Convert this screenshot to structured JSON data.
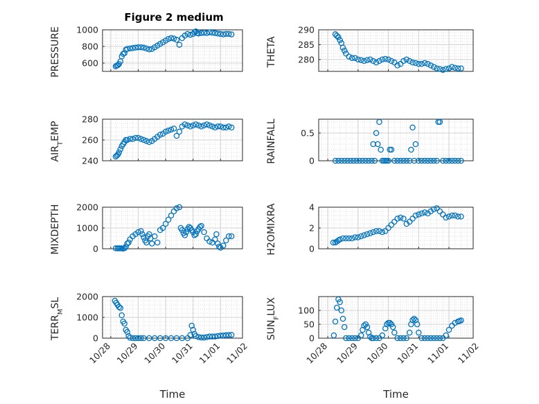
{
  "figure_title": "Figure 2 medium",
  "chart_data": [
    {
      "type": "scatter",
      "title": "Figure 2 medium",
      "ylabel": "PRESSURE",
      "xlabel": "",
      "ylim": [
        500,
        1000
      ],
      "yticks": [
        600,
        800,
        1000
      ],
      "x": [
        0.18,
        0.22,
        0.26,
        0.3,
        0.35,
        0.4,
        0.45,
        0.5,
        0.55,
        0.6,
        0.7,
        0.8,
        0.9,
        1.0,
        1.1,
        1.2,
        1.3,
        1.4,
        1.5,
        1.6,
        1.7,
        1.8,
        1.9,
        2.0,
        2.1,
        2.2,
        2.3,
        2.4,
        2.5,
        2.6,
        2.7,
        2.8,
        2.9,
        3.0,
        3.05,
        3.1,
        3.15,
        3.2,
        3.3,
        3.4,
        3.5,
        3.6,
        3.7,
        3.8,
        3.9,
        4.0,
        4.1,
        4.2,
        4.3,
        4.4
      ],
      "y": [
        560,
        570,
        575,
        590,
        620,
        680,
        710,
        720,
        760,
        770,
        775,
        780,
        785,
        790,
        790,
        785,
        775,
        765,
        770,
        790,
        810,
        830,
        850,
        870,
        890,
        900,
        895,
        880,
        820,
        900,
        930,
        950,
        940,
        950,
        970,
        980,
        960,
        955,
        960,
        965,
        960,
        970,
        965,
        960,
        955,
        950,
        945,
        950,
        950,
        945
      ]
    },
    {
      "type": "scatter",
      "ylabel": "THETA",
      "xlabel": "",
      "ylim": [
        276,
        290
      ],
      "yticks": [
        280,
        285,
        290
      ],
      "x": [
        0.25,
        0.3,
        0.35,
        0.4,
        0.45,
        0.5,
        0.55,
        0.6,
        0.7,
        0.8,
        0.9,
        1.0,
        1.1,
        1.2,
        1.3,
        1.4,
        1.5,
        1.6,
        1.7,
        1.8,
        1.9,
        2.0,
        2.1,
        2.2,
        2.3,
        2.4,
        2.5,
        2.6,
        2.7,
        2.8,
        2.9,
        3.0,
        3.1,
        3.2,
        3.3,
        3.4,
        3.5,
        3.6,
        3.7,
        3.8,
        3.9,
        4.0,
        4.1,
        4.2,
        4.3,
        4.4
      ],
      "y": [
        288.5,
        288,
        287.5,
        286.5,
        285.5,
        284,
        283,
        282,
        281,
        280.5,
        280.5,
        280,
        279.8,
        279.5,
        279.8,
        280,
        279.5,
        279,
        279.5,
        280,
        280.2,
        280,
        279.5,
        279,
        278,
        278.5,
        279.5,
        280,
        279.5,
        279,
        278.8,
        278.5,
        278.5,
        278.8,
        278.5,
        278,
        277.5,
        277,
        276.8,
        276.5,
        276.8,
        277,
        277.5,
        277.2,
        277,
        277
      ]
    },
    {
      "type": "scatter",
      "ylabel": "AIR_TEMP",
      "xlabel": "",
      "ylim": [
        240,
        280
      ],
      "yticks": [
        240,
        260,
        280
      ],
      "x": [
        0.18,
        0.22,
        0.26,
        0.3,
        0.35,
        0.4,
        0.45,
        0.5,
        0.55,
        0.6,
        0.7,
        0.8,
        0.9,
        1.0,
        1.1,
        1.2,
        1.3,
        1.4,
        1.5,
        1.6,
        1.7,
        1.8,
        1.9,
        2.0,
        2.1,
        2.2,
        2.3,
        2.4,
        2.5,
        2.6,
        2.7,
        2.8,
        2.9,
        3.0,
        3.1,
        3.2,
        3.3,
        3.4,
        3.5,
        3.6,
        3.7,
        3.8,
        3.9,
        4.0,
        4.1,
        4.2,
        4.3,
        4.4
      ],
      "y": [
        244,
        245,
        246,
        248,
        251,
        254,
        256,
        258,
        260,
        260,
        261,
        261,
        262,
        262,
        261,
        260,
        259,
        258,
        259,
        261,
        263,
        265,
        266,
        268,
        269,
        270,
        271,
        264,
        268,
        273,
        275,
        274,
        273,
        274,
        275,
        274,
        273,
        274,
        275,
        274,
        273,
        272,
        273,
        273,
        272,
        272,
        273,
        272
      ]
    },
    {
      "type": "scatter",
      "ylabel": "RAINFALL",
      "xlabel": "",
      "ylim": [
        0,
        0.75
      ],
      "yticks": [
        0,
        0.5
      ],
      "x": [
        0.25,
        0.35,
        0.45,
        0.55,
        0.65,
        0.75,
        0.85,
        0.95,
        1.05,
        1.15,
        1.25,
        1.35,
        1.45,
        1.5,
        1.55,
        1.6,
        1.65,
        1.7,
        1.75,
        1.8,
        1.85,
        1.9,
        1.95,
        2.0,
        2.05,
        2.1,
        2.2,
        2.3,
        2.4,
        2.5,
        2.6,
        2.7,
        2.75,
        2.8,
        2.85,
        2.9,
        3.0,
        3.1,
        3.2,
        3.3,
        3.4,
        3.5,
        3.6,
        3.65,
        3.7,
        3.8,
        3.9,
        4.0,
        4.1,
        4.2,
        4.3,
        4.4
      ],
      "y": [
        0,
        0,
        0,
        0,
        0,
        0,
        0,
        0,
        0,
        0,
        0,
        0,
        0,
        0.3,
        0,
        0.5,
        0.3,
        0.7,
        0.2,
        0,
        0,
        0,
        0,
        0,
        0.2,
        0.2,
        0,
        0,
        0,
        0,
        0,
        0,
        0.2,
        0.6,
        0,
        0.3,
        0,
        0,
        0,
        0,
        0,
        0,
        0,
        0.7,
        0.7,
        0,
        0,
        0,
        0,
        0,
        0,
        0
      ]
    },
    {
      "type": "scatter",
      "ylabel": "MIXDEPTH",
      "xlabel": "",
      "ylim": [
        0,
        2000
      ],
      "yticks": [
        0,
        1000,
        2000
      ],
      "x": [
        0.18,
        0.25,
        0.3,
        0.35,
        0.4,
        0.45,
        0.5,
        0.55,
        0.6,
        0.65,
        0.7,
        0.8,
        0.9,
        1.0,
        1.1,
        1.15,
        1.2,
        1.25,
        1.3,
        1.35,
        1.4,
        1.45,
        1.5,
        1.6,
        1.7,
        1.8,
        1.9,
        2.0,
        2.1,
        2.2,
        2.3,
        2.4,
        2.5,
        2.55,
        2.6,
        2.65,
        2.7,
        2.75,
        2.8,
        2.85,
        2.9,
        2.95,
        3.0,
        3.05,
        3.1,
        3.15,
        3.2,
        3.25,
        3.3,
        3.4,
        3.5,
        3.6,
        3.7,
        3.8,
        3.85,
        3.9,
        3.95,
        4.0,
        4.1,
        4.2,
        4.3,
        4.4
      ],
      "y": [
        20,
        20,
        20,
        20,
        20,
        10,
        30,
        100,
        250,
        300,
        450,
        600,
        700,
        800,
        850,
        700,
        550,
        400,
        300,
        600,
        700,
        500,
        250,
        600,
        300,
        900,
        1000,
        1200,
        1400,
        1600,
        1800,
        1950,
        2000,
        1000,
        900,
        750,
        650,
        800,
        950,
        1050,
        1000,
        900,
        800,
        650,
        700,
        850,
        950,
        1050,
        1100,
        800,
        500,
        350,
        300,
        450,
        700,
        250,
        100,
        50,
        150,
        400,
        600,
        600
      ]
    },
    {
      "type": "scatter",
      "ylabel": "H2OMIXRA",
      "xlabel": "",
      "ylim": [
        0,
        4
      ],
      "yticks": [
        0,
        2,
        4
      ],
      "x": [
        0.18,
        0.25,
        0.3,
        0.35,
        0.4,
        0.5,
        0.6,
        0.7,
        0.8,
        0.9,
        1.0,
        1.1,
        1.2,
        1.3,
        1.4,
        1.5,
        1.6,
        1.7,
        1.8,
        1.9,
        2.0,
        2.1,
        2.2,
        2.3,
        2.4,
        2.5,
        2.6,
        2.7,
        2.8,
        2.9,
        3.0,
        3.1,
        3.2,
        3.3,
        3.4,
        3.5,
        3.6,
        3.7,
        3.8,
        3.9,
        4.0,
        4.1,
        4.2,
        4.3,
        4.4
      ],
      "y": [
        0.6,
        0.6,
        0.7,
        0.8,
        0.9,
        1.0,
        1.0,
        1.0,
        1.0,
        1.1,
        1.1,
        1.2,
        1.3,
        1.4,
        1.5,
        1.6,
        1.7,
        1.7,
        1.6,
        1.7,
        2.0,
        2.3,
        2.6,
        2.9,
        3.0,
        2.9,
        2.4,
        2.6,
        2.9,
        3.2,
        3.3,
        3.4,
        3.5,
        3.4,
        3.6,
        3.8,
        3.9,
        3.6,
        3.3,
        3.0,
        3.1,
        3.2,
        3.2,
        3.1,
        3.1
      ]
    },
    {
      "type": "scatter",
      "ylabel": "TERR_MSL",
      "xlabel": "Time",
      "ylim": [
        0,
        2000
      ],
      "yticks": [
        0,
        1000,
        2000
      ],
      "xticklabels": [
        "10/28",
        "10/29",
        "10/30",
        "10/31",
        "11/01",
        "11/02"
      ],
      "x": [
        0.15,
        0.2,
        0.25,
        0.3,
        0.35,
        0.4,
        0.45,
        0.5,
        0.55,
        0.6,
        0.65,
        0.7,
        0.8,
        0.9,
        1.0,
        1.1,
        1.2,
        1.4,
        1.6,
        1.8,
        2.0,
        2.2,
        2.4,
        2.6,
        2.8,
        2.9,
        2.95,
        3.0,
        3.05,
        3.1,
        3.2,
        3.3,
        3.4,
        3.5,
        3.6,
        3.7,
        3.8,
        3.9,
        4.0,
        4.1,
        4.2,
        4.3,
        4.4
      ],
      "y": [
        1800,
        1700,
        1600,
        1500,
        1450,
        1100,
        800,
        700,
        400,
        300,
        100,
        20,
        0,
        0,
        0,
        0,
        0,
        0,
        0,
        0,
        0,
        0,
        0,
        0,
        0,
        150,
        600,
        400,
        200,
        100,
        50,
        30,
        30,
        50,
        80,
        80,
        80,
        100,
        120,
        130,
        140,
        150,
        160
      ]
    },
    {
      "type": "scatter",
      "ylabel": "SUN_FLUX",
      "xlabel": "Time",
      "ylim": [
        0,
        150
      ],
      "yticks": [
        0,
        50,
        100
      ],
      "xticklabels": [
        "10/28",
        "10/29",
        "10/30",
        "10/31",
        "11/01",
        "11/02"
      ],
      "x": [
        0.2,
        0.25,
        0.3,
        0.35,
        0.4,
        0.45,
        0.5,
        0.55,
        0.6,
        0.7,
        0.8,
        0.9,
        1.0,
        1.1,
        1.15,
        1.2,
        1.25,
        1.3,
        1.35,
        1.4,
        1.45,
        1.5,
        1.6,
        1.7,
        1.8,
        1.9,
        1.95,
        2.0,
        2.05,
        2.1,
        2.15,
        2.2,
        2.3,
        2.4,
        2.5,
        2.6,
        2.7,
        2.75,
        2.8,
        2.85,
        2.9,
        2.95,
        3.0,
        3.1,
        3.2,
        3.3,
        3.4,
        3.5,
        3.6,
        3.7,
        3.8,
        3.9,
        4.0,
        4.1,
        4.2,
        4.3,
        4.35,
        4.4
      ],
      "y": [
        10,
        60,
        110,
        140,
        130,
        100,
        70,
        40,
        0,
        0,
        0,
        0,
        0,
        10,
        30,
        45,
        50,
        40,
        20,
        5,
        0,
        0,
        0,
        0,
        10,
        35,
        50,
        55,
        55,
        50,
        40,
        20,
        0,
        0,
        0,
        0,
        20,
        50,
        65,
        70,
        65,
        50,
        20,
        0,
        0,
        0,
        0,
        0,
        0,
        0,
        0,
        10,
        30,
        45,
        55,
        60,
        62,
        64
      ]
    }
  ]
}
